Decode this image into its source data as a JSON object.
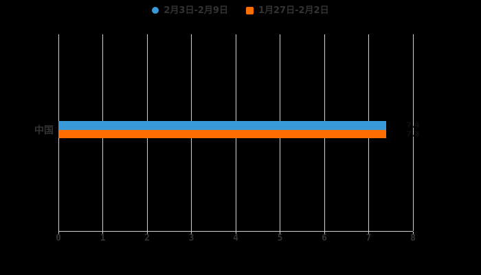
{
  "legend": {
    "items": [
      {
        "label": "2月3日-2月9日",
        "color": "#3A99D9",
        "marker": "circle"
      },
      {
        "label": "1月27日-2月2日",
        "color": "#FF6E00",
        "marker": "square"
      }
    ]
  },
  "chart_data": {
    "type": "bar",
    "orientation": "horizontal",
    "title": "",
    "xlabel": "",
    "ylabel": "",
    "categories": [
      "中国"
    ],
    "series": [
      {
        "name": "2月3日-2月9日",
        "color": "#3A99D9",
        "values": [
          7.4
        ]
      },
      {
        "name": "1月27日-2月2日",
        "color": "#FF6E00",
        "values": [
          7.4
        ]
      }
    ],
    "x_ticks": [
      0,
      1,
      2,
      3,
      4,
      5,
      6,
      7,
      8
    ],
    "xlim": [
      0,
      8
    ],
    "grid": true,
    "legend_position": "top",
    "background_color": "#000000",
    "axis_color": "#D4D4D4",
    "tick_label_color": "#333333",
    "category_label_color": "#333333",
    "value_label_color": "#0D0D0D"
  }
}
